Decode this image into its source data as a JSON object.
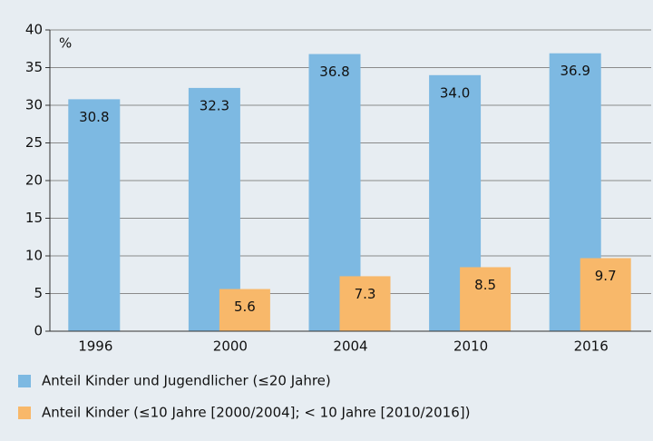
{
  "chart_data": {
    "type": "bar",
    "y_label": "%",
    "categories": [
      "1996",
      "2000",
      "2004",
      "2010",
      "2016"
    ],
    "series": [
      {
        "name": "Anteil Kinder und Jugendlicher (≤20 Jahre)",
        "color": "#7db9e2",
        "values": [
          30.8,
          32.3,
          36.8,
          34.0,
          36.9
        ],
        "value_labels": [
          "30.8",
          "32.3",
          "36.8",
          "34.0",
          "36.9"
        ]
      },
      {
        "name": "Anteil Kinder (≤10 Jahre [2000/2004]; < 10 Jahre [2010/2016])",
        "color": "#f8b86a",
        "values": [
          null,
          5.6,
          7.3,
          8.5,
          9.7
        ],
        "value_labels": [
          null,
          "5.6",
          "7.3",
          "8.5",
          "9.7"
        ]
      }
    ],
    "ylim": [
      0,
      40
    ],
    "yticks": [
      0,
      5,
      10,
      15,
      20,
      25,
      30,
      35,
      40
    ],
    "grid": true
  }
}
